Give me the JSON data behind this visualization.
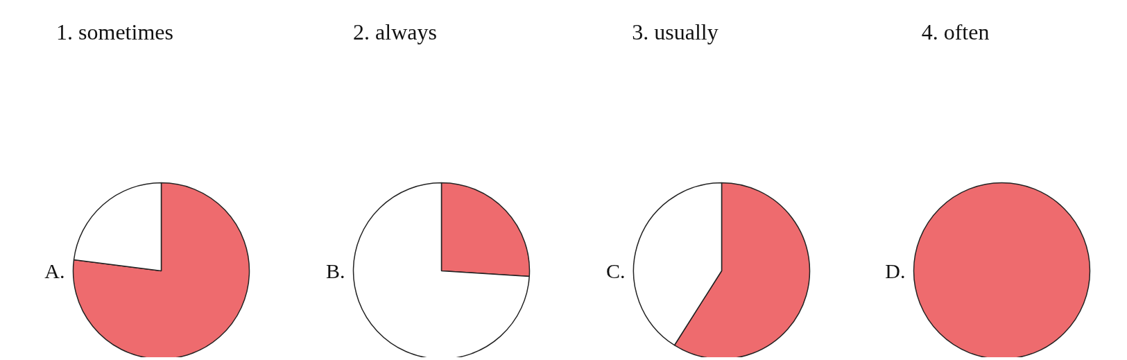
{
  "chart_data": [
    {
      "type": "pie",
      "title": "A.",
      "annotations": [
        "1. sometimes"
      ],
      "categories": [
        null,
        null
      ],
      "values": [
        77,
        23
      ],
      "colors": [
        "#ee6b6e",
        "#ffffff"
      ]
    },
    {
      "type": "pie",
      "title": "B.",
      "annotations": [
        "2. always"
      ],
      "categories": [
        null,
        null
      ],
      "values": [
        26,
        74
      ],
      "colors": [
        "#ee6b6e",
        "#ffffff"
      ]
    },
    {
      "type": "pie",
      "title": "C.",
      "annotations": [
        "3. usually"
      ],
      "categories": [
        null,
        null
      ],
      "values": [
        59,
        41
      ],
      "colors": [
        "#ee6b6e",
        "#ffffff"
      ]
    },
    {
      "type": "pie",
      "title": "D.",
      "annotations": [
        "4. often"
      ],
      "categories": [
        null
      ],
      "values": [
        100
      ],
      "colors": [
        "#ee6b6e"
      ]
    }
  ]
}
